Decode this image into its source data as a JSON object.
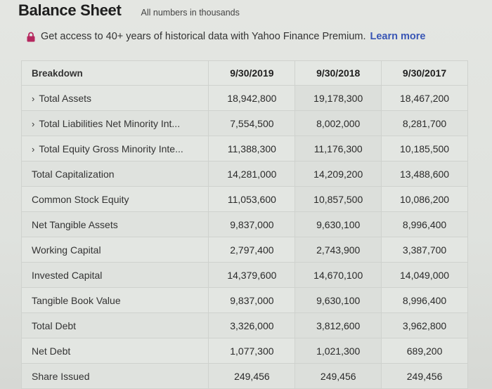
{
  "header": {
    "title": "Balance Sheet",
    "subtitle": "All numbers in thousands"
  },
  "promo": {
    "icon": "lock-icon",
    "text": "Get access to 40+ years of historical data with Yahoo Finance Premium.",
    "link_label": "Learn more",
    "link_color": "#3956b5",
    "icon_color": "#b5275e"
  },
  "table": {
    "columns": [
      "Breakdown",
      "9/30/2019",
      "9/30/2018",
      "9/30/2017"
    ],
    "rows": [
      {
        "label": "Total Assets",
        "expandable": true,
        "values": [
          "18,942,800",
          "19,178,300",
          "18,467,200"
        ]
      },
      {
        "label": "Total Liabilities Net Minority Int...",
        "expandable": true,
        "values": [
          "7,554,500",
          "8,002,000",
          "8,281,700"
        ]
      },
      {
        "label": "Total Equity Gross Minority Inte...",
        "expandable": true,
        "values": [
          "11,388,300",
          "11,176,300",
          "10,185,500"
        ]
      },
      {
        "label": "Total Capitalization",
        "expandable": false,
        "values": [
          "14,281,000",
          "14,209,200",
          "13,488,600"
        ]
      },
      {
        "label": "Common Stock Equity",
        "expandable": false,
        "values": [
          "11,053,600",
          "10,857,500",
          "10,086,200"
        ]
      },
      {
        "label": "Net Tangible Assets",
        "expandable": false,
        "values": [
          "9,837,000",
          "9,630,100",
          "8,996,400"
        ]
      },
      {
        "label": "Working Capital",
        "expandable": false,
        "values": [
          "2,797,400",
          "2,743,900",
          "3,387,700"
        ]
      },
      {
        "label": "Invested Capital",
        "expandable": false,
        "values": [
          "14,379,600",
          "14,670,100",
          "14,049,000"
        ]
      },
      {
        "label": "Tangible Book Value",
        "expandable": false,
        "values": [
          "9,837,000",
          "9,630,100",
          "8,996,400"
        ]
      },
      {
        "label": "Total Debt",
        "expandable": false,
        "values": [
          "3,326,000",
          "3,812,600",
          "3,962,800"
        ]
      },
      {
        "label": "Net Debt",
        "expandable": false,
        "values": [
          "1,077,300",
          "1,021,300",
          "689,200"
        ]
      },
      {
        "label": "Share Issued",
        "expandable": false,
        "values": [
          "249,456",
          "249,456",
          "249,456"
        ]
      }
    ],
    "chevron_glyph": "›"
  }
}
